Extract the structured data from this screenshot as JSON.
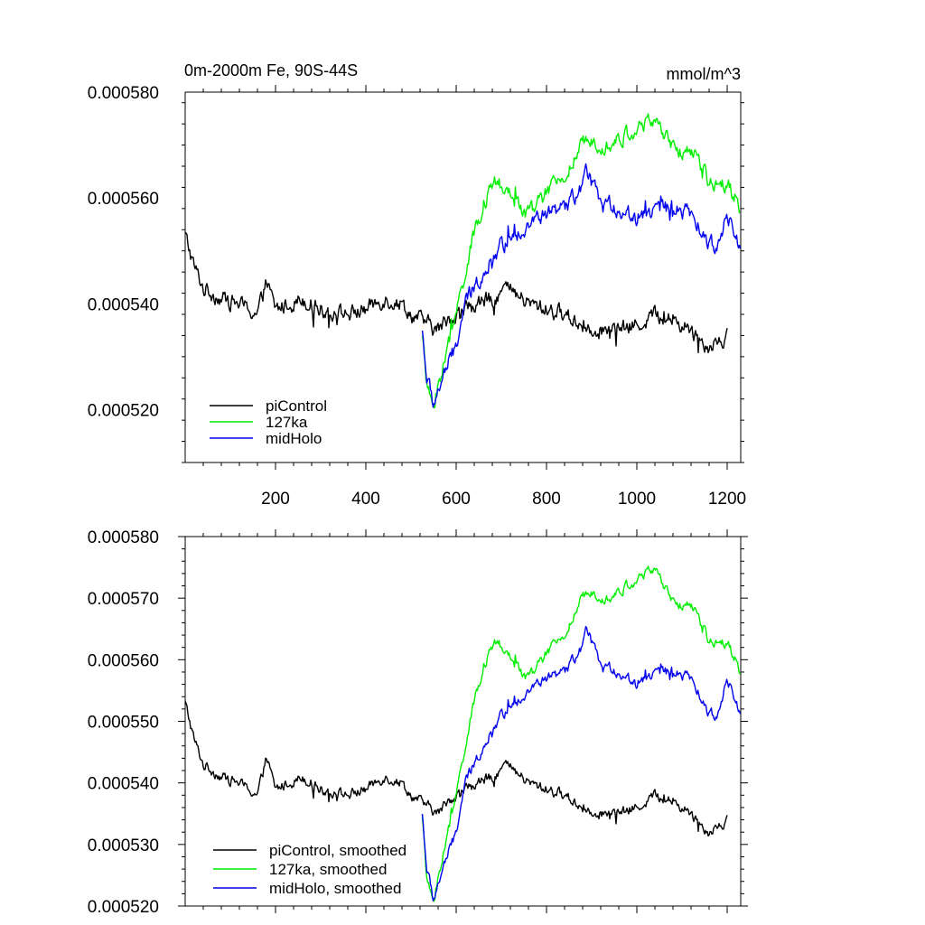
{
  "chart_data": [
    {
      "type": "line",
      "title_left": "0m-2000m Fe, 90S-44S",
      "title_right": "mmol/m^3",
      "xlim": [
        0,
        1230
      ],
      "ylim": [
        0.00051,
        0.00058
      ],
      "y_ticks": [
        0.00052,
        0.00054,
        0.00056,
        0.00058
      ],
      "y_tick_labels": [
        "0.000520",
        "0.000540",
        "0.000560",
        "0.000580"
      ],
      "x_ticks": [
        200,
        400,
        600,
        800,
        1000,
        1200
      ],
      "x_tick_labels": [
        "200",
        "400",
        "600",
        "800",
        "1000",
        "1200"
      ],
      "x_tick_labels_shown": true,
      "noise": 1.0,
      "legend": {
        "position": "bottom-left",
        "entries": [
          "piControl",
          "127ka",
          "midHolo"
        ]
      },
      "series": [
        {
          "name": "piControl",
          "color": "#000000",
          "x": [
            0,
            20,
            40,
            80,
            120,
            160,
            180,
            200,
            260,
            300,
            360,
            400,
            440,
            480,
            500,
            520,
            560,
            580,
            620,
            680,
            710,
            760,
            800,
            840,
            880,
            920,
            960,
            1000,
            1040,
            1080,
            1120,
            1160,
            1200
          ],
          "y": [
            0.000553,
            0.000547,
            0.000543,
            0.000541,
            0.00054,
            0.000538,
            0.000544,
            0.000539,
            0.000541,
            0.000539,
            0.000538,
            0.000539,
            0.000541,
            0.00054,
            0.000538,
            0.000537,
            0.000535,
            0.000537,
            0.000539,
            0.000541,
            0.000543,
            0.00054,
            0.000539,
            0.000538,
            0.000536,
            0.000535,
            0.000535,
            0.000536,
            0.000538,
            0.000537,
            0.000535,
            0.000532,
            0.000534
          ]
        },
        {
          "name": "127ka",
          "color": "#00ee00",
          "x": [
            525,
            535,
            550,
            570,
            600,
            620,
            640,
            660,
            690,
            720,
            760,
            800,
            840,
            880,
            900,
            940,
            980,
            1020,
            1040,
            1080,
            1120,
            1160,
            1200,
            1230
          ],
          "y": [
            0.000535,
            0.000524,
            0.000521,
            0.000528,
            0.000538,
            0.000546,
            0.000553,
            0.000559,
            0.000563,
            0.00056,
            0.000557,
            0.000561,
            0.000564,
            0.00057,
            0.000571,
            0.00057,
            0.000572,
            0.000574,
            0.000575,
            0.000569,
            0.000569,
            0.000563,
            0.000563,
            0.000558
          ]
        },
        {
          "name": "midHolo",
          "color": "#0000ee",
          "x": [
            525,
            535,
            550,
            570,
            600,
            620,
            660,
            700,
            760,
            800,
            840,
            880,
            890,
            920,
            960,
            1000,
            1040,
            1080,
            1120,
            1160,
            1180,
            1200,
            1230
          ],
          "y": [
            0.000535,
            0.000526,
            0.000521,
            0.000526,
            0.000532,
            0.00054,
            0.000546,
            0.000551,
            0.000555,
            0.000557,
            0.000558,
            0.000562,
            0.000565,
            0.000559,
            0.000558,
            0.000556,
            0.000558,
            0.000558,
            0.000557,
            0.000551,
            0.000551,
            0.000557,
            0.000552
          ]
        }
      ]
    },
    {
      "type": "line",
      "xlim": [
        0,
        1230
      ],
      "ylim": [
        0.00052,
        0.00058
      ],
      "y_ticks": [
        0.00052,
        0.00053,
        0.00054,
        0.00055,
        0.00056,
        0.00057,
        0.00058
      ],
      "y_tick_labels": [
        "0.000520",
        "0.000530",
        "0.000540",
        "0.000550",
        "0.000560",
        "0.000570",
        "0.000580"
      ],
      "x_ticks": [
        200,
        400,
        600,
        800,
        1000,
        1200
      ],
      "x_tick_labels_shown": false,
      "noise": 0.55,
      "legend": {
        "position": "bottom-left",
        "entries": [
          "piControl, smoothed",
          "127ka, smoothed",
          "midHolo, smoothed"
        ]
      },
      "series": [
        {
          "name": "piControl, smoothed",
          "color": "#000000",
          "x": [
            0,
            20,
            40,
            80,
            120,
            160,
            180,
            200,
            260,
            300,
            360,
            400,
            440,
            480,
            500,
            520,
            560,
            580,
            620,
            680,
            710,
            760,
            800,
            840,
            880,
            920,
            960,
            1000,
            1040,
            1080,
            1120,
            1160,
            1200
          ],
          "y": [
            0.000553,
            0.000547,
            0.000543,
            0.000541,
            0.00054,
            0.000538,
            0.000544,
            0.000539,
            0.000541,
            0.000539,
            0.000538,
            0.000539,
            0.000541,
            0.00054,
            0.000538,
            0.000537,
            0.000535,
            0.000537,
            0.000539,
            0.000541,
            0.000543,
            0.00054,
            0.000539,
            0.000538,
            0.000536,
            0.000535,
            0.000535,
            0.000536,
            0.000538,
            0.000537,
            0.000535,
            0.000532,
            0.000534
          ]
        },
        {
          "name": "127ka, smoothed",
          "color": "#00ee00",
          "x": [
            525,
            535,
            550,
            570,
            600,
            620,
            640,
            660,
            690,
            720,
            760,
            800,
            840,
            880,
            900,
            940,
            980,
            1020,
            1040,
            1080,
            1120,
            1160,
            1200,
            1230
          ],
          "y": [
            0.000535,
            0.000524,
            0.000521,
            0.000528,
            0.000538,
            0.000546,
            0.000553,
            0.000559,
            0.000563,
            0.00056,
            0.000557,
            0.000561,
            0.000564,
            0.00057,
            0.000571,
            0.00057,
            0.000572,
            0.000574,
            0.000575,
            0.000569,
            0.000569,
            0.000563,
            0.000563,
            0.000558
          ]
        },
        {
          "name": "midHolo, smoothed",
          "color": "#0000ee",
          "x": [
            525,
            535,
            550,
            570,
            600,
            620,
            660,
            700,
            760,
            800,
            840,
            880,
            890,
            920,
            960,
            1000,
            1040,
            1080,
            1120,
            1160,
            1180,
            1200,
            1230
          ],
          "y": [
            0.000535,
            0.000526,
            0.000521,
            0.000526,
            0.000532,
            0.00054,
            0.000546,
            0.000551,
            0.000555,
            0.000557,
            0.000558,
            0.000562,
            0.000565,
            0.000559,
            0.000558,
            0.000556,
            0.000558,
            0.000558,
            0.000557,
            0.000551,
            0.000551,
            0.000557,
            0.000552
          ]
        }
      ]
    }
  ]
}
